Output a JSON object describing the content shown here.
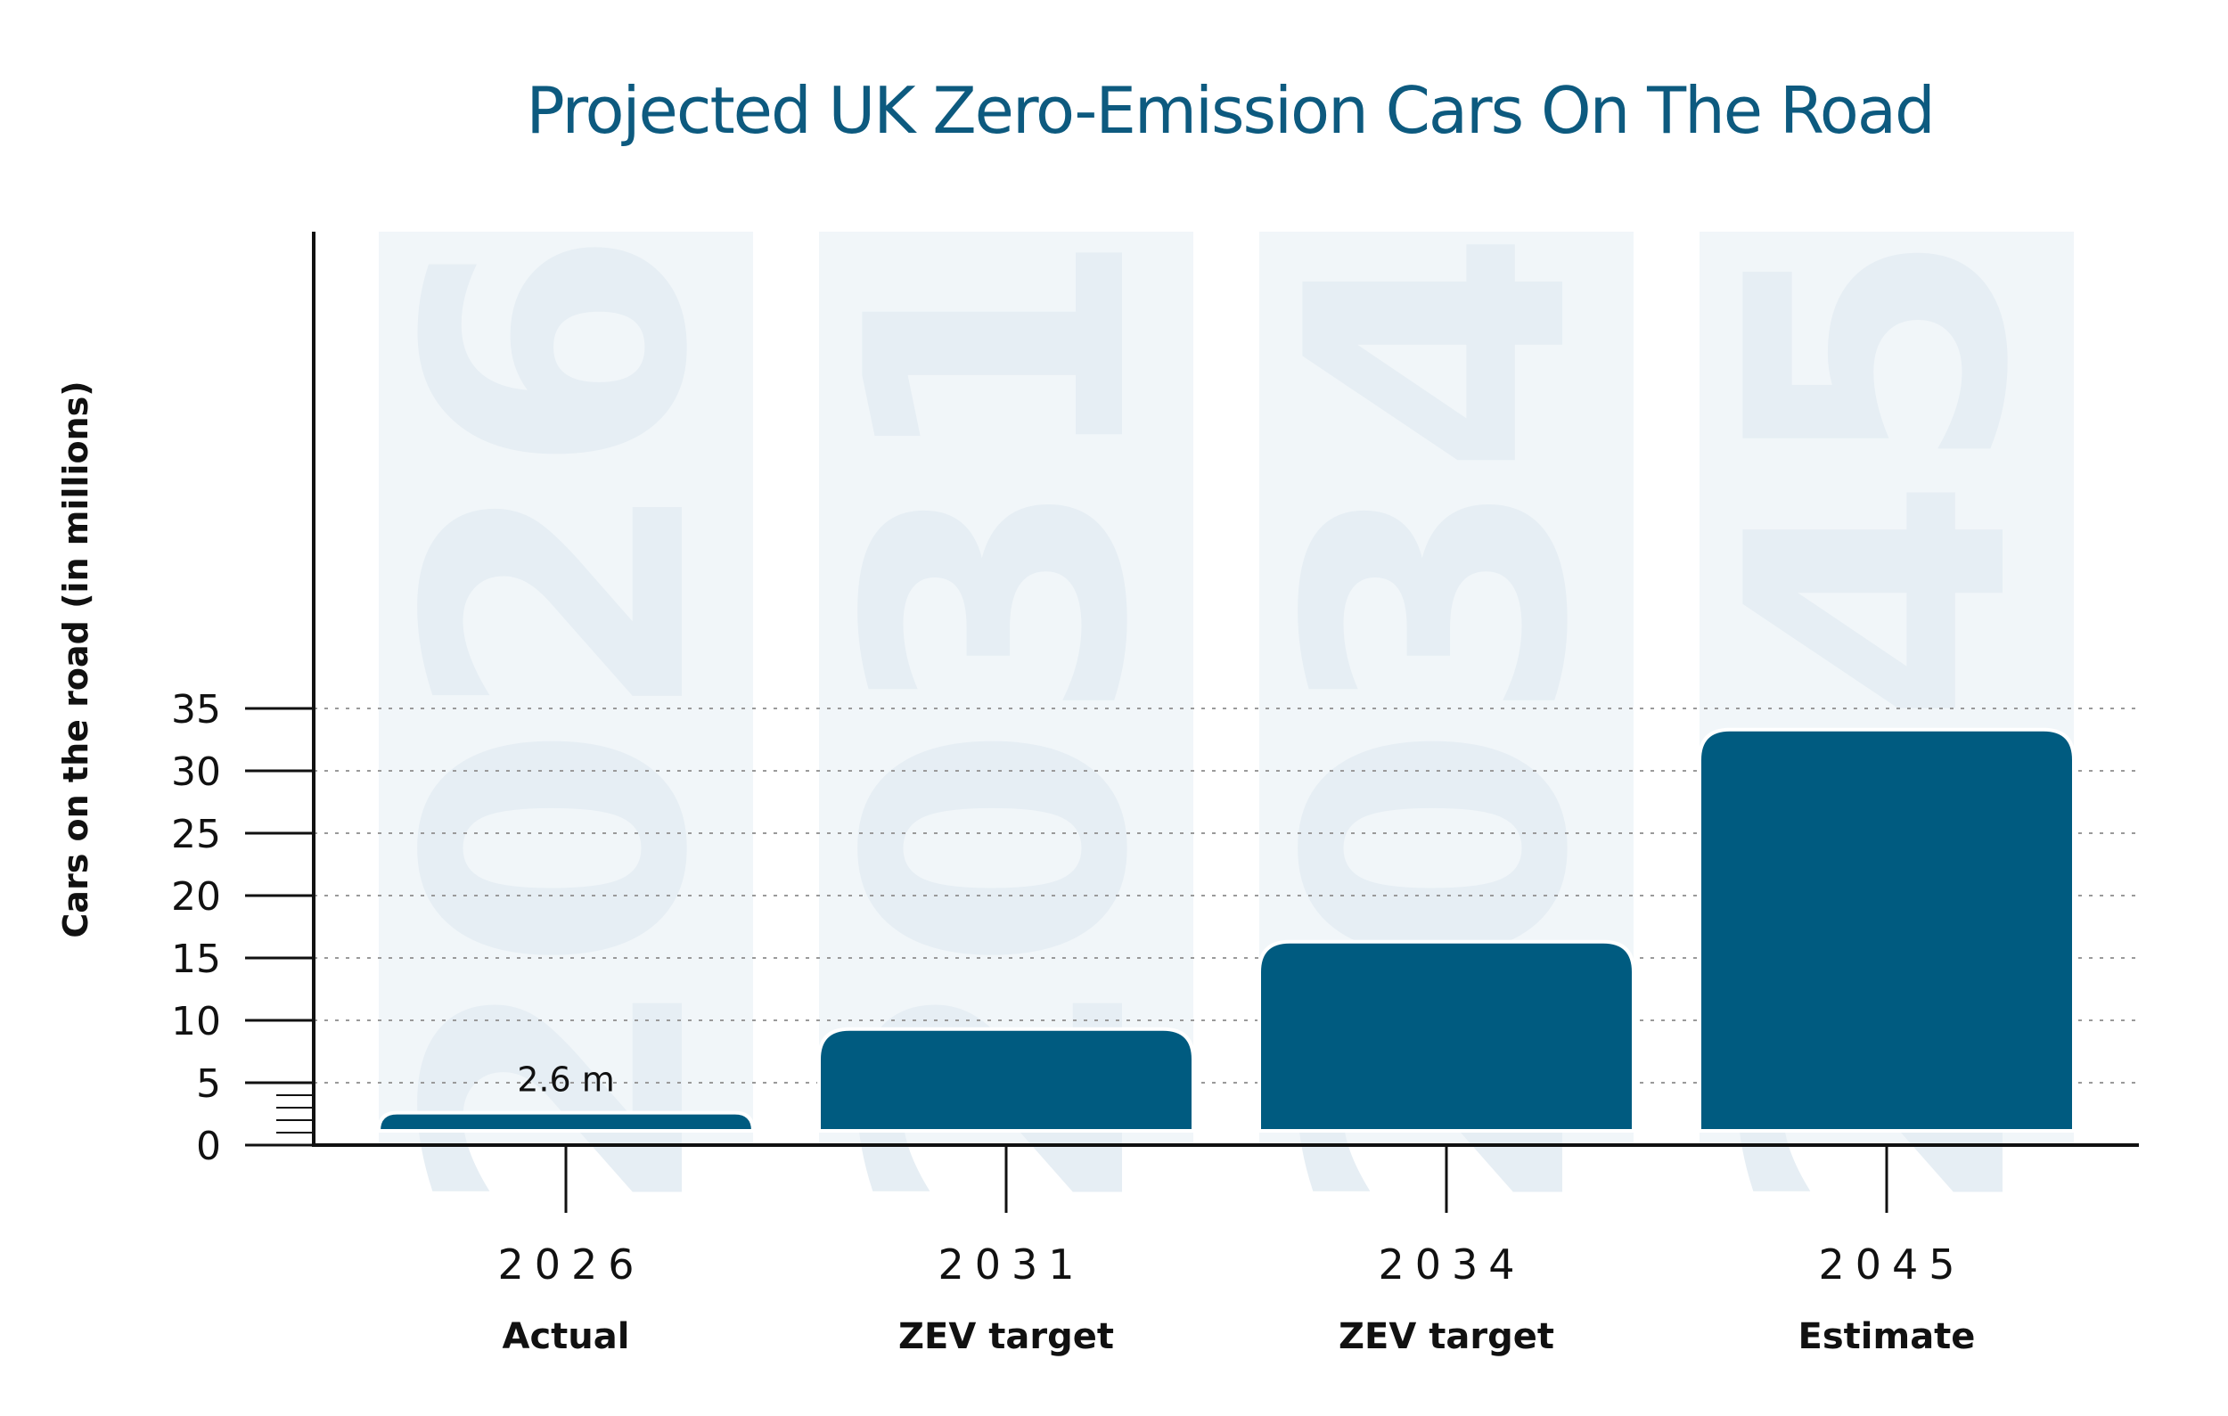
{
  "colors": {
    "title": "#0d5a7f",
    "bar": "#005b80",
    "column_bg": "#f1f6f9",
    "ghost_text": "#e6eef4",
    "axis": "#111111",
    "grid": "#9a9a9a"
  },
  "chart_data": {
    "type": "bar",
    "title": "Projected UK Zero-Emission Cars On The Road",
    "ylabel": "Cars on the road  (in millions)",
    "xlabel": "",
    "ylim": [
      0,
      35
    ],
    "yticks": [
      0,
      5,
      10,
      15,
      20,
      25,
      30,
      35
    ],
    "grid": true,
    "categories": [
      "2026",
      "2031",
      "2034",
      "2045"
    ],
    "sublabels": [
      "Actual",
      "ZEV target",
      "ZEV target",
      "Estimate"
    ],
    "values": [
      2.6,
      9.3,
      16.3,
      33.3
    ],
    "data_labels": [
      "2.6 m",
      "",
      "",
      ""
    ]
  }
}
